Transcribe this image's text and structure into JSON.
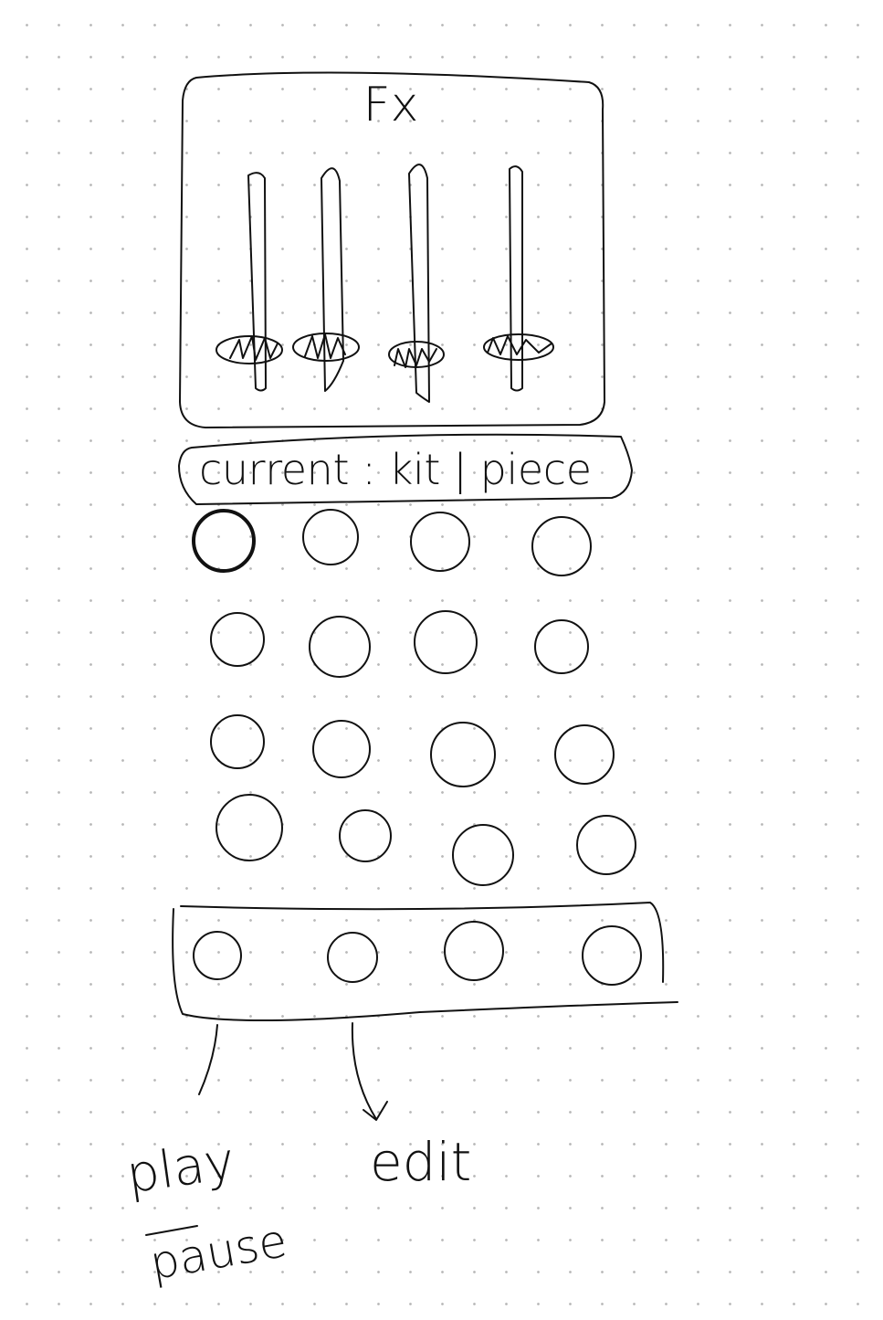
{
  "fx_panel": {
    "title": "Fx"
  },
  "status_bar": {
    "label": "current : kit | piece"
  },
  "annotations": {
    "play": "play",
    "pause": "pause",
    "edit": "edit"
  }
}
